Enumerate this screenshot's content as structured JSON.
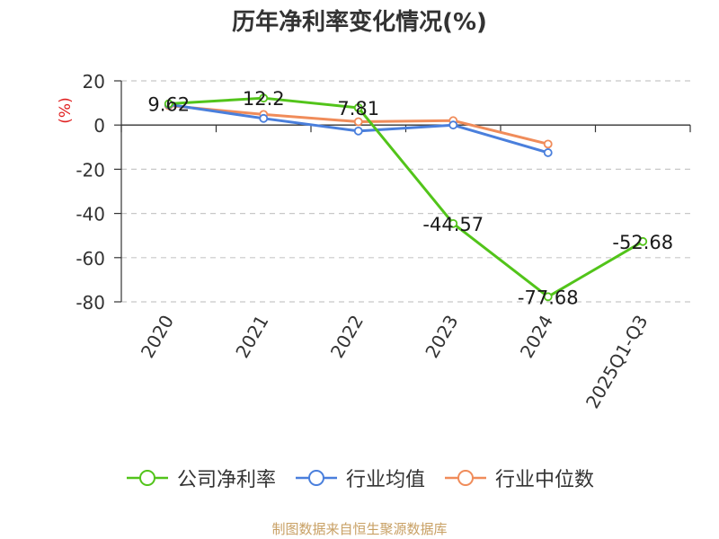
{
  "chart_data": {
    "type": "line",
    "title": "历年净利率变化情况(%)",
    "ylabel": "(%)",
    "xlabel": "",
    "categories": [
      "2020",
      "2021",
      "2022",
      "2023",
      "2024",
      "2025Q1-Q3"
    ],
    "ylim": [
      -80,
      20
    ],
    "yticks": [
      20,
      0,
      -20,
      -40,
      -60,
      -80
    ],
    "grid": true,
    "legend_position": "bottom",
    "series": [
      {
        "name": "公司净利率",
        "color": "#52c41a",
        "values": [
          9.62,
          12.2,
          7.81,
          -44.57,
          -77.68,
          -52.68
        ],
        "labels": [
          "9.62",
          "12.2",
          "7.81",
          "-44.57",
          "-77.68",
          "-52.68"
        ]
      },
      {
        "name": "行业均值",
        "color": "#4a7fdc",
        "values": [
          9.3,
          3.0,
          -2.7,
          0.0,
          -12.5,
          null
        ]
      },
      {
        "name": "行业中位数",
        "color": "#f08c5a",
        "values": [
          8.8,
          4.8,
          1.5,
          2.0,
          -8.6,
          null
        ]
      }
    ]
  },
  "footer": {
    "source": "制图数据来自恒生聚源数据库"
  }
}
